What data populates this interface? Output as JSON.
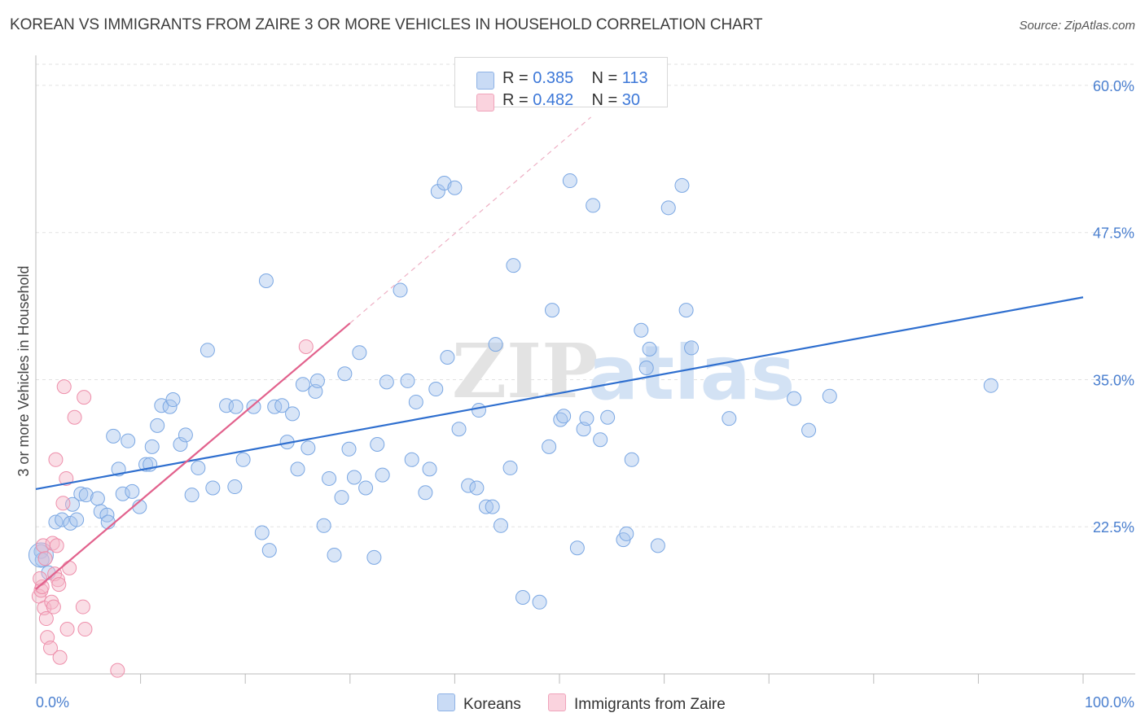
{
  "header": {
    "title": "KOREAN VS IMMIGRANTS FROM ZAIRE 3 OR MORE VEHICLES IN HOUSEHOLD CORRELATION CHART",
    "source": "Source: ZipAtlas.com"
  },
  "watermark": {
    "zip": "ZIP",
    "atlas": "atlas"
  },
  "legend": {
    "rows": [
      {
        "r_label": "R =",
        "r_value": "0.385",
        "n_label": "N =",
        "n_value": "113",
        "color": "#a8c6ee"
      },
      {
        "r_label": "R =",
        "r_value": "0.482",
        "n_label": "N =",
        "n_value": "30",
        "color": "#f4b6c8"
      }
    ]
  },
  "bottom_legend": [
    {
      "label": "Koreans",
      "color": "#a8c6ee"
    },
    {
      "label": "Immigrants from Zaire",
      "color": "#f4b6c8"
    }
  ],
  "chart_data": {
    "type": "scatter",
    "title": "KOREAN VS IMMIGRANTS FROM ZAIRE 3 OR MORE VEHICLES IN HOUSEHOLD CORRELATION CHART",
    "xlabel": "",
    "ylabel": "3 or more Vehicles in Household",
    "xlim": [
      0,
      100
    ],
    "ylim": [
      10,
      62
    ],
    "x_tick_labels": [
      "0.0%",
      "100.0%"
    ],
    "y_ticks": [
      22.5,
      35.0,
      47.5,
      60.0
    ],
    "y_tick_labels": [
      "22.5%",
      "35.0%",
      "47.5%",
      "60.0%"
    ],
    "grid": true,
    "series": [
      {
        "name": "Koreans",
        "color": "#7aa7e3",
        "trend": {
          "x": [
            0,
            100
          ],
          "y": [
            25.7,
            42.0
          ]
        },
        "points": [
          [
            0.5,
            20.4
          ],
          [
            0.6,
            19.7
          ],
          [
            1.2,
            18.6
          ],
          [
            1.9,
            22.9
          ],
          [
            2.5,
            23.1
          ],
          [
            3.5,
            24.4
          ],
          [
            3.3,
            22.8
          ],
          [
            3.9,
            23.1
          ],
          [
            4.3,
            25.3
          ],
          [
            4.8,
            25.2
          ],
          [
            5.9,
            24.9
          ],
          [
            6.2,
            23.8
          ],
          [
            6.8,
            23.5
          ],
          [
            6.9,
            22.9
          ],
          [
            7.4,
            30.2
          ],
          [
            7.9,
            27.4
          ],
          [
            8.3,
            25.3
          ],
          [
            8.8,
            29.8
          ],
          [
            9.2,
            25.5
          ],
          [
            9.9,
            24.2
          ],
          [
            10.5,
            27.8
          ],
          [
            10.9,
            27.8
          ],
          [
            11.1,
            29.3
          ],
          [
            11.6,
            31.1
          ],
          [
            12.0,
            32.8
          ],
          [
            12.8,
            32.7
          ],
          [
            13.1,
            33.3
          ],
          [
            13.8,
            29.5
          ],
          [
            14.3,
            30.3
          ],
          [
            14.9,
            25.2
          ],
          [
            15.5,
            27.5
          ],
          [
            16.4,
            37.5
          ],
          [
            16.9,
            25.8
          ],
          [
            18.2,
            32.8
          ],
          [
            19.0,
            25.9
          ],
          [
            19.1,
            32.7
          ],
          [
            19.8,
            28.2
          ],
          [
            20.8,
            32.7
          ],
          [
            21.6,
            22.0
          ],
          [
            22.0,
            43.4
          ],
          [
            22.3,
            20.5
          ],
          [
            22.8,
            32.7
          ],
          [
            23.5,
            32.8
          ],
          [
            24.0,
            29.7
          ],
          [
            24.5,
            32.1
          ],
          [
            25.0,
            27.4
          ],
          [
            25.5,
            34.6
          ],
          [
            26.0,
            29.2
          ],
          [
            26.7,
            34.0
          ],
          [
            26.9,
            34.9
          ],
          [
            27.5,
            22.6
          ],
          [
            28.0,
            26.6
          ],
          [
            28.5,
            20.1
          ],
          [
            29.2,
            25.0
          ],
          [
            29.5,
            35.5
          ],
          [
            29.9,
            29.1
          ],
          [
            30.4,
            26.7
          ],
          [
            30.9,
            37.3
          ],
          [
            31.5,
            25.8
          ],
          [
            32.3,
            19.9
          ],
          [
            32.6,
            29.5
          ],
          [
            33.1,
            26.9
          ],
          [
            33.5,
            34.8
          ],
          [
            34.8,
            42.6
          ],
          [
            35.5,
            34.9
          ],
          [
            35.9,
            28.2
          ],
          [
            36.3,
            33.1
          ],
          [
            37.2,
            25.4
          ],
          [
            37.6,
            27.4
          ],
          [
            38.2,
            34.2
          ],
          [
            38.4,
            51.0
          ],
          [
            39.0,
            51.7
          ],
          [
            39.3,
            36.9
          ],
          [
            40.0,
            51.3
          ],
          [
            40.4,
            30.8
          ],
          [
            41.3,
            26.0
          ],
          [
            42.3,
            32.4
          ],
          [
            42.1,
            25.8
          ],
          [
            43.0,
            24.2
          ],
          [
            43.6,
            24.2
          ],
          [
            43.9,
            38.0
          ],
          [
            44.4,
            22.6
          ],
          [
            45.3,
            27.5
          ],
          [
            45.6,
            44.7
          ],
          [
            46.5,
            16.5
          ],
          [
            48.1,
            16.1
          ],
          [
            49.0,
            29.3
          ],
          [
            49.3,
            40.9
          ],
          [
            50.1,
            31.6
          ],
          [
            50.4,
            31.9
          ],
          [
            51.0,
            51.9
          ],
          [
            51.7,
            20.7
          ],
          [
            52.3,
            30.8
          ],
          [
            52.6,
            31.7
          ],
          [
            53.2,
            49.8
          ],
          [
            53.9,
            29.9
          ],
          [
            54.6,
            31.8
          ],
          [
            56.1,
            21.4
          ],
          [
            56.4,
            21.9
          ],
          [
            56.9,
            28.2
          ],
          [
            57.8,
            39.2
          ],
          [
            58.3,
            36.0
          ],
          [
            58.6,
            37.6
          ],
          [
            59.4,
            20.9
          ],
          [
            60.4,
            49.6
          ],
          [
            61.7,
            51.5
          ],
          [
            62.1,
            40.9
          ],
          [
            62.6,
            37.7
          ],
          [
            66.2,
            31.7
          ],
          [
            72.4,
            33.4
          ],
          [
            73.8,
            30.7
          ],
          [
            75.8,
            33.6
          ],
          [
            91.2,
            34.5
          ]
        ]
      },
      {
        "name": "Immigrants from Zaire",
        "color": "#ee8fab",
        "trend": {
          "x": [
            0,
            30
          ],
          "y": [
            17.2,
            39.8
          ]
        },
        "trend_extension": {
          "x": [
            30,
            53
          ],
          "y": [
            39.8,
            57.3
          ]
        },
        "points": [
          [
            0.3,
            16.6
          ],
          [
            0.5,
            17.1
          ],
          [
            0.6,
            17.4
          ],
          [
            0.7,
            20.9
          ],
          [
            0.8,
            15.6
          ],
          [
            0.9,
            19.8
          ],
          [
            1.0,
            14.7
          ],
          [
            1.1,
            13.1
          ],
          [
            1.4,
            12.2
          ],
          [
            1.5,
            16.1
          ],
          [
            1.6,
            21.1
          ],
          [
            1.7,
            15.7
          ],
          [
            1.8,
            18.5
          ],
          [
            1.9,
            28.2
          ],
          [
            2.0,
            20.9
          ],
          [
            2.1,
            18.0
          ],
          [
            2.2,
            17.6
          ],
          [
            2.3,
            11.4
          ],
          [
            2.6,
            24.5
          ],
          [
            2.7,
            34.4
          ],
          [
            2.9,
            26.6
          ],
          [
            3.0,
            13.8
          ],
          [
            3.2,
            19.0
          ],
          [
            3.7,
            31.8
          ],
          [
            4.5,
            15.7
          ],
          [
            4.6,
            33.5
          ],
          [
            4.7,
            13.8
          ],
          [
            7.8,
            10.3
          ],
          [
            25.8,
            37.8
          ],
          [
            0.4,
            18.1
          ]
        ]
      }
    ]
  }
}
